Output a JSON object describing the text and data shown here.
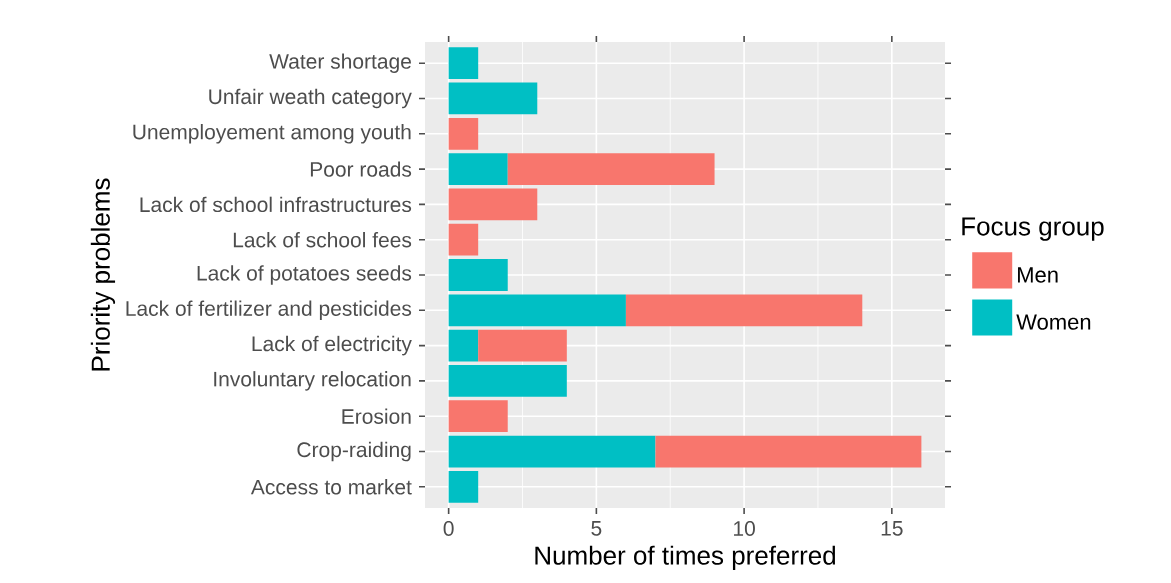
{
  "chart_data": {
    "type": "bar",
    "orientation": "horizontal",
    "stacked": true,
    "categories": [
      "Water shortage",
      "Unfair weath category",
      "Unemployement among youth",
      "Poor roads",
      "Lack of school infrastructures",
      "Lack of school fees",
      "Lack of potatoes seeds",
      "Lack of fertilizer and pesticides",
      "Lack of electricity",
      "Involuntary relocation",
      "Erosion",
      "Crop-raiding",
      "Access to market"
    ],
    "series": [
      {
        "name": "Women",
        "color": "#00bfc4",
        "values": [
          1,
          3,
          null,
          2,
          null,
          null,
          2,
          6,
          1,
          4,
          null,
          7,
          1
        ]
      },
      {
        "name": "Men",
        "color": "#f8766d",
        "values": [
          null,
          null,
          1,
          7,
          3,
          1,
          null,
          8,
          3,
          null,
          2,
          9,
          null
        ]
      }
    ],
    "xlabel": "Number of times preferred",
    "ylabel": "Priority problems",
    "legend_title": "Focus group",
    "xlim": [
      -0.8,
      16.8
    ],
    "xticks": [
      0,
      5,
      10,
      15
    ],
    "grid": true,
    "legend": "right"
  }
}
